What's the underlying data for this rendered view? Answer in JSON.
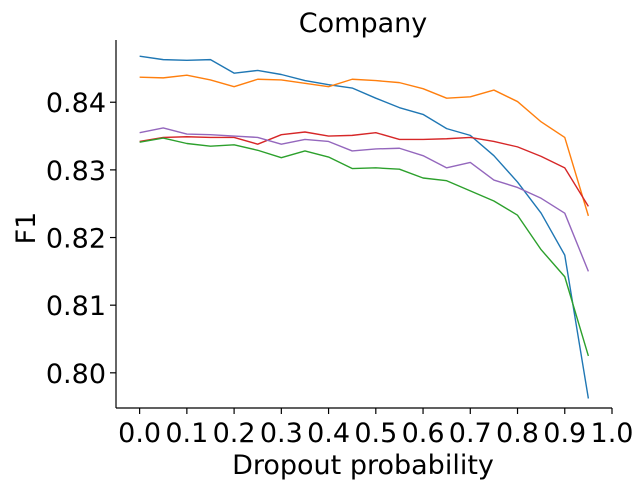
{
  "chart_data": {
    "type": "line",
    "title": "Company",
    "xlabel": "Dropout probability",
    "ylabel": "F1",
    "xlim": [
      -0.05,
      1.0
    ],
    "ylim": [
      0.7948,
      0.8492
    ],
    "grid": false,
    "legend": "none",
    "xticks": [
      "0.0",
      "0.1",
      "0.2",
      "0.3",
      "0.4",
      "0.5",
      "0.6",
      "0.7",
      "0.8",
      "0.9",
      "1.0"
    ],
    "yticks": [
      "0.80",
      "0.81",
      "0.82",
      "0.83",
      "0.84"
    ],
    "x": [
      0.0,
      0.05,
      0.1,
      0.15,
      0.2,
      0.25,
      0.3,
      0.35,
      0.4,
      0.45,
      0.5,
      0.55,
      0.6,
      0.65,
      0.7,
      0.75,
      0.8,
      0.85,
      0.9,
      0.95
    ],
    "series": [
      {
        "color": "#1f77b4",
        "values": [
          0.8468,
          0.8463,
          0.8462,
          0.8463,
          0.8443,
          0.8447,
          0.8441,
          0.8432,
          0.8426,
          0.8421,
          0.8406,
          0.8392,
          0.8382,
          0.8361,
          0.8351,
          0.8321,
          0.8282,
          0.8236,
          0.8174,
          0.7962
        ]
      },
      {
        "color": "#ff7f0e",
        "values": [
          0.8437,
          0.8436,
          0.844,
          0.8433,
          0.8423,
          0.8434,
          0.8433,
          0.8428,
          0.8423,
          0.8434,
          0.8432,
          0.8429,
          0.842,
          0.8406,
          0.8408,
          0.8418,
          0.8401,
          0.8371,
          0.8348,
          0.8232
        ]
      },
      {
        "color": "#d62728",
        "values": [
          0.8342,
          0.8348,
          0.8349,
          0.8348,
          0.8348,
          0.8338,
          0.8352,
          0.8356,
          0.835,
          0.8351,
          0.8355,
          0.8345,
          0.8345,
          0.8346,
          0.8348,
          0.8342,
          0.8334,
          0.832,
          0.8303,
          0.8246
        ]
      },
      {
        "color": "#9467bd",
        "values": [
          0.8355,
          0.8362,
          0.8353,
          0.8352,
          0.835,
          0.8348,
          0.8338,
          0.8345,
          0.8342,
          0.8328,
          0.8331,
          0.8332,
          0.8321,
          0.8303,
          0.8311,
          0.8285,
          0.8274,
          0.8258,
          0.8236,
          0.815
        ]
      },
      {
        "color": "#2ca02c",
        "values": [
          0.8341,
          0.8347,
          0.8339,
          0.8335,
          0.8337,
          0.8329,
          0.8318,
          0.8328,
          0.8319,
          0.8302,
          0.8303,
          0.8301,
          0.8288,
          0.8284,
          0.8269,
          0.8254,
          0.8233,
          0.8182,
          0.8142,
          0.8025
        ]
      }
    ]
  }
}
